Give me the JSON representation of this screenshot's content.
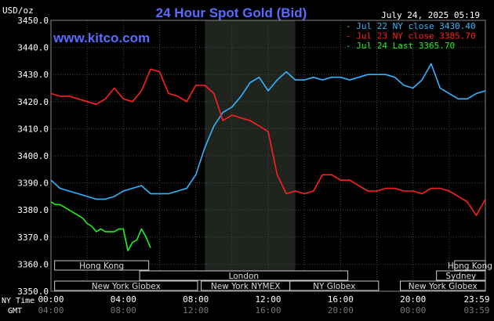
{
  "header": {
    "title": "24 Hour Spot Gold (Bid)",
    "unit": "USD/oz",
    "date": "July 24, 2025 05:19",
    "watermark": "www.kitco.com"
  },
  "legend": [
    {
      "label": "- Jul 22 NY close 3430.40",
      "color": "#33b5ff"
    },
    {
      "label": "- Jul 23 NY close 3385.70",
      "color": "#ff2020"
    },
    {
      "label": "- Jul 24 Last 3365.70",
      "color": "#22ee22"
    }
  ],
  "sessions": [
    {
      "label": "Hong Kong",
      "row": 0,
      "from": 0.2,
      "to": 5.4
    },
    {
      "label": "Hong Kong",
      "row": 0,
      "from": 22.3,
      "to": 24.0
    },
    {
      "label": "London",
      "row": 1,
      "from": 4.9,
      "to": 16.4
    },
    {
      "label": "Sydney",
      "row": 1,
      "from": 21.3,
      "to": 24.0
    },
    {
      "label": "New York Globex",
      "row": 2,
      "from": 0.2,
      "to": 8.1
    },
    {
      "label": "New York NYMEX",
      "row": 2,
      "from": 8.3,
      "to": 13.2
    },
    {
      "label": "NY Globex",
      "row": 2,
      "from": 13.2,
      "to": 18.1
    },
    {
      "label": "New York Globex",
      "row": 2,
      "from": 19.3,
      "to": 24.0
    }
  ],
  "time_labels": {
    "row1_label": "NY Time",
    "row2_label": "GMT",
    "ny": [
      "00:00",
      "04:00",
      "08:00",
      "12:00",
      "16:00",
      "20:00",
      "23:59"
    ],
    "gmt": [
      "04:00",
      "08:00",
      "12:00",
      "16:00",
      "20:00",
      "00:00",
      "03:59"
    ]
  },
  "chart_data": {
    "type": "line",
    "title": "24 Hour Spot Gold (Bid)",
    "ylabel": "USD/oz",
    "xlabel": "NY Time",
    "ylim": [
      3350,
      3450
    ],
    "yticks": [
      "3350.0",
      "3360.0",
      "3370.0",
      "3380.0",
      "3390.0",
      "3400.0",
      "3410.0",
      "3420.0",
      "3430.0",
      "3440.0",
      "3450.0"
    ],
    "xlim": [
      0,
      24
    ],
    "grid": true,
    "legend_position": "top-right",
    "shaded_region_hours": [
      8.5,
      13.5
    ],
    "series": [
      {
        "name": "Jul 22 NY close 3430.40",
        "color": "#33b5ff",
        "x": [
          0,
          0.5,
          1,
          1.5,
          2,
          2.5,
          3,
          3.5,
          4,
          4.5,
          5,
          5.5,
          6,
          6.5,
          7,
          7.5,
          8,
          8.5,
          9,
          9.5,
          10,
          10.5,
          11,
          11.5,
          12,
          12.5,
          13,
          13.5,
          14,
          14.5,
          15,
          15.5,
          16,
          16.5,
          17,
          17.5,
          18,
          18.5,
          19,
          19.5,
          20,
          20.5,
          21,
          21.5,
          22,
          22.5,
          23,
          23.5,
          24
        ],
        "y": [
          3391,
          3388,
          3387,
          3386,
          3385,
          3384,
          3384,
          3385,
          3387,
          3388,
          3389,
          3386,
          3386,
          3386,
          3387,
          3388,
          3393,
          3403,
          3411,
          3416,
          3418,
          3422,
          3427,
          3429,
          3424,
          3428,
          3431,
          3428,
          3428,
          3429,
          3428,
          3429,
          3429,
          3428,
          3429,
          3430,
          3430,
          3430,
          3429,
          3426,
          3425,
          3428,
          3434,
          3425,
          3423,
          3421,
          3421,
          3423,
          3424
        ]
      },
      {
        "name": "Jul 23 NY close 3385.70",
        "color": "#ff2020",
        "x": [
          0,
          0.5,
          1,
          1.5,
          2,
          2.5,
          3,
          3.5,
          4,
          4.5,
          5,
          5.5,
          6,
          6.5,
          7,
          7.5,
          8,
          8.5,
          9,
          9.5,
          10,
          10.5,
          11,
          11.5,
          12,
          12.5,
          13,
          13.5,
          14,
          14.5,
          15,
          15.5,
          16,
          16.5,
          17,
          17.5,
          18,
          18.5,
          19,
          19.5,
          20,
          20.5,
          21,
          21.5,
          22,
          22.5,
          23,
          23.5,
          24
        ],
        "y": [
          3423,
          3422,
          3422,
          3421,
          3420,
          3419,
          3421,
          3425,
          3421,
          3420,
          3424,
          3432,
          3431,
          3423,
          3422,
          3420,
          3426,
          3426,
          3423,
          3413,
          3415,
          3414,
          3413,
          3411,
          3409,
          3393,
          3386,
          3387,
          3386,
          3387,
          3393,
          3393,
          3391,
          3391,
          3389,
          3387,
          3387,
          3388,
          3388,
          3387,
          3387,
          3386,
          3388,
          3388,
          3387,
          3385,
          3383,
          3378,
          3384
        ]
      },
      {
        "name": "Jul 24 Last 3365.70",
        "color": "#22ee22",
        "x": [
          0,
          0.25,
          0.5,
          0.75,
          1,
          1.25,
          1.5,
          1.75,
          2,
          2.25,
          2.5,
          2.75,
          3,
          3.25,
          3.5,
          3.75,
          4,
          4.25,
          4.5,
          4.75,
          5,
          5.25,
          5.5
        ],
        "y": [
          3383,
          3382,
          3382,
          3381,
          3380,
          3379,
          3378,
          3377,
          3375,
          3374,
          3372,
          3373,
          3372,
          3372,
          3372,
          3373,
          3373,
          3365,
          3368,
          3369,
          3373,
          3370,
          3366
        ]
      }
    ]
  }
}
